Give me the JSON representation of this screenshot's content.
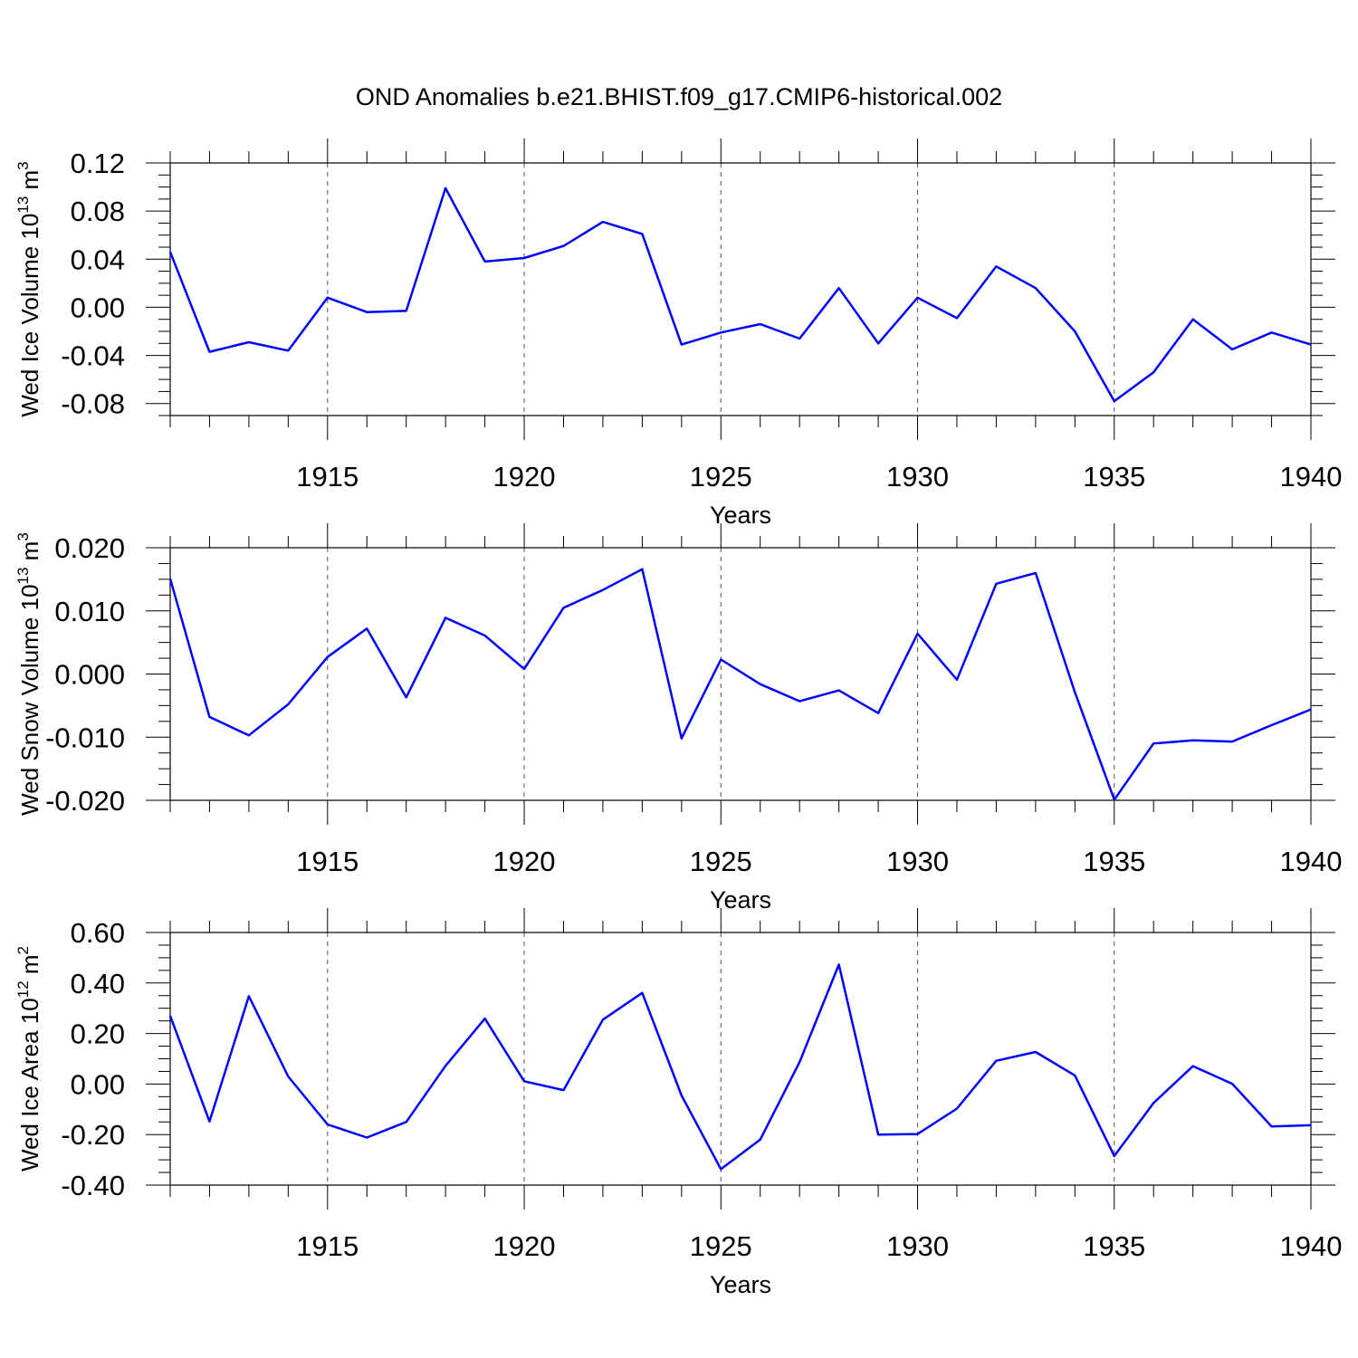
{
  "title": "OND Anomalies b.e21.BHIST.f09_g17.CMIP6-historical.002",
  "chart_data": [
    {
      "type": "line",
      "ylabel": {
        "main": "Wed Ice Volume 10",
        "exp": "13",
        "unit": " m",
        "unit_exp": "3"
      },
      "xlabel": "Years",
      "xlim": [
        1911,
        1940
      ],
      "ylim": [
        -0.09,
        0.12
      ],
      "xticks": [
        1915,
        1920,
        1925,
        1930,
        1935,
        1940
      ],
      "yticks": [
        -0.08,
        -0.04,
        0.0,
        0.04,
        0.08,
        0.12
      ],
      "ytick_labels": [
        "-0.08",
        "-0.04",
        "0.00",
        "0.04",
        "0.08",
        "0.12"
      ],
      "color": "#0000ff",
      "x": [
        1911,
        1912,
        1913,
        1914,
        1915,
        1916,
        1917,
        1918,
        1919,
        1920,
        1921,
        1922,
        1923,
        1924,
        1925,
        1926,
        1927,
        1928,
        1929,
        1930,
        1931,
        1932,
        1933,
        1934,
        1935,
        1936,
        1937,
        1938,
        1939,
        1940
      ],
      "values": [
        0.046,
        -0.037,
        -0.029,
        -0.036,
        0.008,
        -0.004,
        -0.003,
        0.099,
        0.038,
        0.041,
        0.051,
        0.071,
        0.061,
        -0.031,
        -0.021,
        -0.014,
        -0.026,
        0.016,
        -0.03,
        0.008,
        -0.009,
        0.034,
        0.016,
        -0.02,
        -0.078,
        -0.054,
        -0.01,
        -0.035,
        -0.021,
        -0.031
      ]
    },
    {
      "type": "line",
      "ylabel": {
        "main": "Wed Snow Volume 10",
        "exp": "13",
        "unit": " m",
        "unit_exp": "3"
      },
      "xlabel": "Years",
      "xlim": [
        1911,
        1940
      ],
      "ylim": [
        -0.02,
        0.02
      ],
      "xticks": [
        1915,
        1920,
        1925,
        1930,
        1935,
        1940
      ],
      "yticks": [
        -0.02,
        -0.01,
        0.0,
        0.01,
        0.02
      ],
      "ytick_labels": [
        "-0.020",
        "-0.010",
        "0.000",
        "0.010",
        "0.020"
      ],
      "color": "#0000ff",
      "x": [
        1911,
        1912,
        1913,
        1914,
        1915,
        1916,
        1917,
        1918,
        1919,
        1920,
        1921,
        1922,
        1923,
        1924,
        1925,
        1926,
        1927,
        1928,
        1929,
        1930,
        1931,
        1932,
        1933,
        1934,
        1935,
        1936,
        1937,
        1938,
        1939,
        1940
      ],
      "values": [
        0.0151,
        -0.0068,
        -0.0097,
        -0.0048,
        0.0027,
        0.0072,
        -0.0037,
        0.0089,
        0.0061,
        0.0008,
        0.0105,
        0.0133,
        0.0166,
        -0.0102,
        0.0023,
        -0.0016,
        -0.0043,
        -0.0026,
        -0.0062,
        0.0064,
        -0.0009,
        0.0143,
        0.016,
        -0.0029,
        -0.0199,
        -0.011,
        -0.0105,
        -0.0107,
        -0.0081,
        -0.0056
      ]
    },
    {
      "type": "line",
      "ylabel": {
        "main": "Wed Ice Area 10",
        "exp": "12",
        "unit": " m",
        "unit_exp": "2"
      },
      "xlabel": "Years",
      "xlim": [
        1911,
        1940
      ],
      "ylim": [
        -0.4,
        0.6
      ],
      "xticks": [
        1915,
        1920,
        1925,
        1930,
        1935,
        1940
      ],
      "yticks": [
        -0.4,
        -0.2,
        0.0,
        0.2,
        0.4,
        0.6
      ],
      "ytick_labels": [
        "-0.40",
        "-0.20",
        "0.00",
        "0.20",
        "0.40",
        "0.60"
      ],
      "color": "#0000ff",
      "x": [
        1911,
        1912,
        1913,
        1914,
        1915,
        1916,
        1917,
        1918,
        1919,
        1920,
        1921,
        1922,
        1923,
        1924,
        1925,
        1926,
        1927,
        1928,
        1929,
        1930,
        1931,
        1932,
        1933,
        1934,
        1935,
        1936,
        1937,
        1938,
        1939,
        1940
      ],
      "values": [
        0.27,
        -0.148,
        0.348,
        0.03,
        -0.16,
        -0.212,
        -0.15,
        0.072,
        0.259,
        0.011,
        -0.024,
        0.255,
        0.361,
        -0.045,
        -0.337,
        -0.22,
        0.087,
        0.473,
        -0.2,
        -0.198,
        -0.097,
        0.092,
        0.127,
        0.034,
        -0.285,
        -0.075,
        0.071,
        0.001,
        -0.168,
        -0.163
      ]
    }
  ]
}
